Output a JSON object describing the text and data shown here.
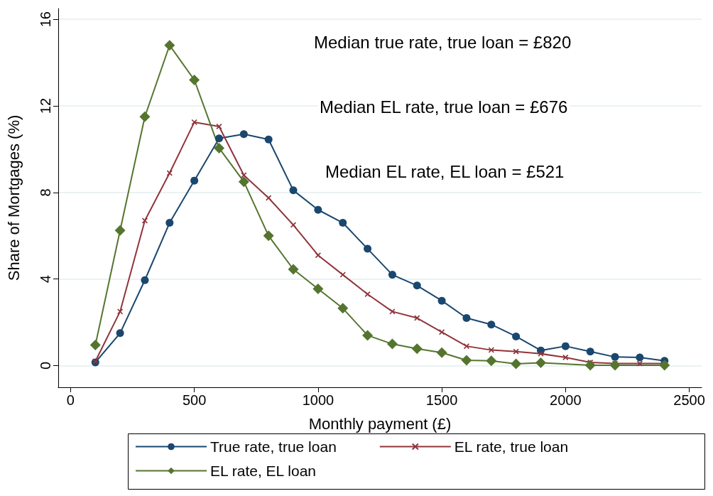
{
  "chart_data": {
    "type": "line",
    "xlabel": "Monthly payment (£)",
    "ylabel": "Share of Mortgages (%)",
    "annotations": [
      "Median true rate, true loan = £820",
      "Median EL rate, true loan = £676",
      "Median EL rate, EL loan = £521"
    ],
    "x": [
      100,
      200,
      300,
      400,
      500,
      600,
      700,
      800,
      900,
      1000,
      1100,
      1200,
      1300,
      1400,
      1500,
      1600,
      1700,
      1800,
      1900,
      2000,
      2100,
      2200,
      2300,
      2400
    ],
    "series": [
      {
        "name": "True rate, true loan",
        "color": "#1a476f",
        "marker": "circle",
        "values": [
          0.15,
          1.5,
          3.95,
          6.6,
          8.55,
          10.5,
          10.7,
          10.45,
          8.1,
          7.2,
          6.6,
          5.4,
          4.2,
          3.7,
          3.0,
          2.2,
          1.9,
          1.35,
          0.7,
          0.9,
          0.65,
          0.4,
          0.38,
          0.22
        ]
      },
      {
        "name": "EL rate, true loan",
        "color": "#90353b",
        "marker": "cross",
        "values": [
          0.2,
          2.5,
          6.7,
          8.9,
          11.25,
          11.05,
          8.8,
          7.75,
          6.5,
          5.1,
          4.2,
          3.3,
          2.5,
          2.2,
          1.55,
          0.9,
          0.72,
          0.65,
          0.55,
          0.38,
          0.15,
          0.1,
          0.1,
          0.1
        ]
      },
      {
        "name": "EL rate, EL loan",
        "color": "#55752f",
        "marker": "diamond",
        "values": [
          0.95,
          6.25,
          11.5,
          14.8,
          13.2,
          10.05,
          8.5,
          6.0,
          4.45,
          3.55,
          2.65,
          1.4,
          1.0,
          0.78,
          0.6,
          0.25,
          0.22,
          0.08,
          0.13,
          null,
          0.02,
          0.02,
          null,
          0.02
        ]
      }
    ],
    "xlim": [
      -50,
      2550
    ],
    "xticks": [
      0,
      500,
      1000,
      1500,
      2000,
      2500
    ],
    "ylim": [
      -1,
      16.5
    ],
    "yticks": [
      0,
      4,
      8,
      12,
      16
    ],
    "grid": "y",
    "legend": "bottom",
    "line_style": "solid"
  }
}
